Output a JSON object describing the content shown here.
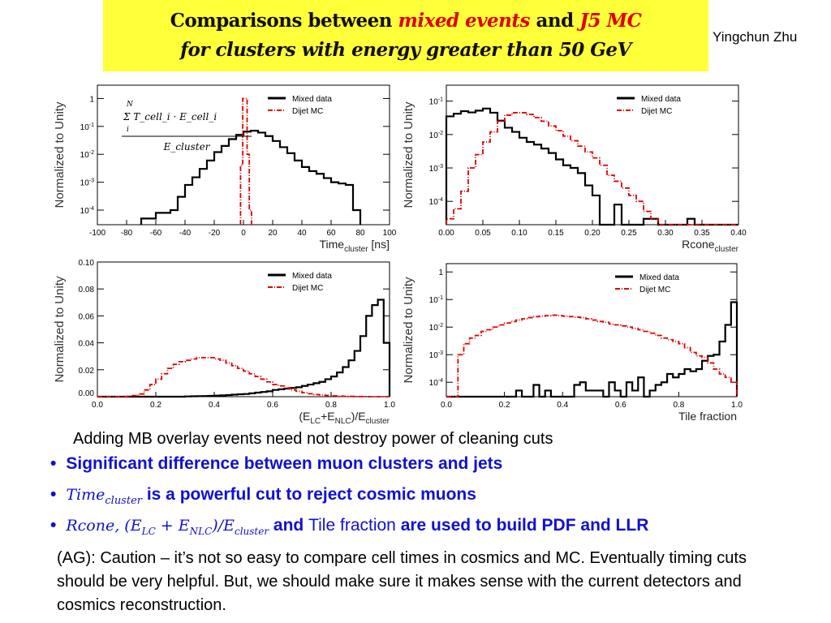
{
  "title": {
    "line1_a": "Comparisons between ",
    "line1_red": "mixed events",
    "line1_b": " and ",
    "line1_red2": "J5 MC",
    "line2": "for clusters with energy greater than 50 GeV"
  },
  "author": "Yingchun Zhu",
  "note": "Adding MB overlay events need not destroy power of cleaning cuts",
  "bullets": [
    {
      "text": "Significant difference between muon clusters and jets"
    },
    {
      "math": "Time",
      "math_sub": "cluster",
      "text": " is a powerful cut to reject cosmic muons"
    },
    {
      "math": "Rcone, (E",
      "m1": "LC",
      "m2": " + E",
      "m3": "NLC",
      "m4": ")/E",
      "m5": "cluster",
      "text_a": " and ",
      "plain": "Tile fraction",
      "text_b": " are used to build PDF and LLR"
    }
  ],
  "ag_comment": "(AG): Caution – it’s not so easy to compare cell times in cosmics and MC.  Eventually timing cuts should be very helpful.  But, we should make sure it makes sense  with the current detectors and cosmics reconstruction.",
  "colors": {
    "mixed": "#000000",
    "dijet": "#e00000",
    "title_bg": "#ffff3a",
    "bullets": "#1010d0"
  },
  "chart_data": [
    {
      "type": "histogram",
      "ylabel": "Normalized to Unity",
      "xlabel": "Time",
      "xlabel_sub": "cluster",
      "xlabel_suffix": " [ns]",
      "yscale": "log",
      "xlim": [
        -100,
        100
      ],
      "ylim": [
        3e-05,
        3
      ],
      "xticks": [
        -100,
        -80,
        -60,
        -40,
        -20,
        0,
        20,
        40,
        60,
        80,
        100
      ],
      "yticks": [
        {
          "v": 1,
          "l": "1"
        },
        {
          "v": 0.1,
          "l": "10",
          "e": "-1"
        },
        {
          "v": 0.01,
          "l": "10",
          "e": "-2"
        },
        {
          "v": 0.001,
          "l": "10",
          "e": "-3"
        },
        {
          "v": 0.0001,
          "l": "10",
          "e": "-4"
        }
      ],
      "annotation": {
        "num": "Σ T_cell_i · E_cell_i",
        "sum_top": "N",
        "sum_bot": "i",
        "den": "E_cluster"
      },
      "legend": [
        {
          "name": "Mixed data"
        },
        {
          "name": "Dijet  MC"
        }
      ],
      "legend_position": "top-right",
      "series": [
        {
          "name": "Mixed data",
          "x_start": -70,
          "bin_width": 5,
          "values": [
            5e-05,
            5e-05,
            8e-05,
            8e-05,
            0.0001,
            0.0003,
            0.0008,
            0.0015,
            0.003,
            0.006,
            0.012,
            0.02,
            0.035,
            0.05,
            0.065,
            0.07,
            0.06,
            0.045,
            0.03,
            0.018,
            0.011,
            0.006,
            0.0035,
            0.0025,
            0.002,
            0.0014,
            0.001,
            0.0009,
            0.0008,
            0.0001
          ]
        },
        {
          "name": "Dijet  MC",
          "x_start": -2,
          "bin_width": 1.5,
          "values": [
            0.004,
            1,
            1,
            0.01,
            0.0001
          ]
        }
      ]
    },
    {
      "type": "histogram",
      "ylabel": "Normalized to Unity",
      "xlabel": "Rcone",
      "xlabel_sub": "cluster",
      "xlabel_suffix": "",
      "yscale": "log",
      "xlim": [
        0,
        0.4
      ],
      "ylim": [
        2e-05,
        0.3
      ],
      "xticks": [
        0,
        0.05,
        0.1,
        0.15,
        0.2,
        0.25,
        0.3,
        0.35,
        0.4
      ],
      "xtick_labels": [
        "0.00",
        "0.05",
        "0.10",
        "0.15",
        "0.20",
        "0.25",
        "0.30",
        "0.35",
        "0.40"
      ],
      "yticks": [
        {
          "v": 0.1,
          "l": "10",
          "e": "-1"
        },
        {
          "v": 0.01,
          "l": "10",
          "e": "-2"
        },
        {
          "v": 0.001,
          "l": "10",
          "e": "-3"
        },
        {
          "v": 0.0001,
          "l": "10",
          "e": "-4"
        }
      ],
      "legend": [
        {
          "name": "Mixed data"
        },
        {
          "name": "Dijet  MC"
        }
      ],
      "legend_position": "top-right",
      "series": [
        {
          "name": "Mixed data",
          "x_start": 0,
          "bin_width": 0.01,
          "values": [
            0.035,
            0.042,
            0.05,
            0.046,
            0.052,
            0.06,
            0.045,
            0.026,
            0.016,
            0.012,
            0.008,
            0.006,
            0.005,
            0.0038,
            0.0028,
            0.0018,
            0.0012,
            0.001,
            0.0007,
            0.0003,
            0.00015,
            0,
            0,
            8e-05,
            0,
            0,
            0,
            3e-05,
            3e-05,
            0,
            0,
            0,
            0,
            3e-05,
            0,
            0,
            0,
            0,
            0,
            0
          ]
        },
        {
          "name": "Dijet  MC",
          "x_start": 0,
          "bin_width": 0.01,
          "values": [
            3e-05,
            6e-05,
            0.0002,
            0.001,
            0.0025,
            0.006,
            0.012,
            0.025,
            0.038,
            0.045,
            0.045,
            0.04,
            0.032,
            0.025,
            0.018,
            0.013,
            0.009,
            0.0065,
            0.0045,
            0.003,
            0.002,
            0.0012,
            0.0006,
            0.0004,
            0.00025,
            0.00015,
            0.0001,
            5e-05,
            3e-05,
            0,
            0,
            0,
            0,
            0,
            0,
            0,
            0,
            0,
            0,
            0
          ]
        }
      ]
    },
    {
      "type": "histogram",
      "ylabel": "Normalized to Unity",
      "xlabel": "(E",
      "xlabel_parts": [
        "(E",
        "LC",
        "+E",
        "NLC",
        ")/E",
        "cluster"
      ],
      "yscale": "linear",
      "xlim": [
        0,
        1
      ],
      "ylim": [
        0,
        0.1
      ],
      "xticks": [
        0,
        0.2,
        0.4,
        0.6,
        0.8,
        1.0
      ],
      "xtick_labels": [
        "0.0",
        "0.2",
        "0.4",
        "0.6",
        "0.8",
        "1.0"
      ],
      "yticks": [
        {
          "v": 0,
          "l": "0.00"
        },
        {
          "v": 0.02,
          "l": "0.02"
        },
        {
          "v": 0.04,
          "l": "0.04"
        },
        {
          "v": 0.06,
          "l": "0.06"
        },
        {
          "v": 0.08,
          "l": "0.08"
        },
        {
          "v": 0.1,
          "l": "0.10"
        }
      ],
      "legend": [
        {
          "name": "Mixed data"
        },
        {
          "name": "Dijet  MC"
        }
      ],
      "legend_position": "top-right",
      "series": [
        {
          "name": "Mixed data",
          "x_start": 0,
          "bin_width": 0.02,
          "values": [
            0,
            0,
            0,
            0,
            0,
            0,
            0,
            0,
            0,
            0,
            0,
            0,
            0,
            0,
            0,
            0.0002,
            0.0003,
            0.0004,
            0.0005,
            0.0006,
            0.0008,
            0.001,
            0.0012,
            0.0015,
            0.0018,
            0.002,
            0.0025,
            0.003,
            0.0035,
            0.004,
            0.005,
            0.0055,
            0.006,
            0.0065,
            0.007,
            0.008,
            0.009,
            0.01,
            0.011,
            0.013,
            0.015,
            0.018,
            0.022,
            0.027,
            0.034,
            0.045,
            0.06,
            0.068,
            0.072,
            0.04
          ]
        },
        {
          "name": "Dijet  MC",
          "x_start": 0,
          "bin_width": 0.02,
          "values": [
            0,
            0,
            0,
            0,
            0,
            0.0002,
            0.0008,
            0.002,
            0.005,
            0.009,
            0.013,
            0.017,
            0.021,
            0.024,
            0.026,
            0.027,
            0.028,
            0.029,
            0.029,
            0.029,
            0.028,
            0.027,
            0.025,
            0.023,
            0.021,
            0.019,
            0.017,
            0.015,
            0.013,
            0.011,
            0.009,
            0.008,
            0.0065,
            0.005,
            0.004,
            0.003,
            0.0022,
            0.0016,
            0.0012,
            0.0009,
            0.0006,
            0.0004,
            0.0003,
            0.0002,
            0.0001,
            0.0001,
            0,
            0,
            0,
            0
          ]
        }
      ]
    },
    {
      "type": "histogram",
      "ylabel": "Normalized to Unity",
      "xlabel": "Tile fraction",
      "yscale": "log",
      "xlim": [
        0,
        1
      ],
      "ylim": [
        3e-05,
        2
      ],
      "xticks": [
        0,
        0.2,
        0.4,
        0.6,
        0.8,
        1.0
      ],
      "xtick_labels": [
        "0.0",
        "0.2",
        "0.4",
        "0.6",
        "0.8",
        "1.0"
      ],
      "yticks": [
        {
          "v": 1,
          "l": "1"
        },
        {
          "v": 0.1,
          "l": "10",
          "e": "-1"
        },
        {
          "v": 0.01,
          "l": "10",
          "e": "-2"
        },
        {
          "v": 0.001,
          "l": "10",
          "e": "-3"
        },
        {
          "v": 0.0001,
          "l": "10",
          "e": "-4"
        }
      ],
      "legend": [
        {
          "name": "Mixed data"
        },
        {
          "name": "Dijet  MC"
        }
      ],
      "legend_position": "top-right",
      "series": [
        {
          "name": "Mixed data",
          "x_start": 0,
          "bin_width": 0.02,
          "values": [
            0,
            0,
            0,
            0,
            0,
            0,
            0,
            0,
            0,
            0,
            0,
            0,
            5e-05,
            0,
            0,
            8e-05,
            0,
            5e-05,
            0,
            0,
            0,
            0,
            8e-05,
            0.0001,
            5e-05,
            5e-05,
            5e-05,
            0,
            0.0001,
            5e-05,
            0,
            0.0001,
            5e-05,
            0.00015,
            3e-05,
            5e-05,
            8e-05,
            0.0001,
            0.0002,
            0.00015,
            0.0002,
            0.0003,
            0.00025,
            0.0003,
            0.0006,
            0.0009,
            0.001,
            0.003,
            0.012,
            0.08
          ]
        },
        {
          "name": "Dijet  MC",
          "x_start": 0,
          "bin_width": 0.02,
          "values": [
            0,
            3e-05,
            0.001,
            0.0025,
            0.004,
            0.005,
            0.007,
            0.008,
            0.01,
            0.012,
            0.014,
            0.016,
            0.018,
            0.02,
            0.022,
            0.024,
            0.025,
            0.026,
            0.027,
            0.026,
            0.025,
            0.024,
            0.023,
            0.022,
            0.02,
            0.018,
            0.016,
            0.015,
            0.013,
            0.012,
            0.011,
            0.01,
            0.009,
            0.008,
            0.007,
            0.006,
            0.005,
            0.004,
            0.0035,
            0.003,
            0.0025,
            0.0018,
            0.0012,
            0.0009,
            0.0008,
            0.0005,
            0.0003,
            0.0002,
            0.00015,
            0.0001
          ]
        }
      ]
    }
  ]
}
